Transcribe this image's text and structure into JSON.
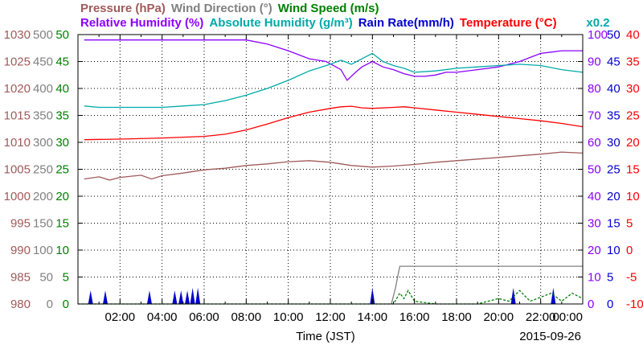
{
  "chart_data": {
    "type": "line",
    "title_rows": [
      [
        {
          "text": "Pressure (hPa)",
          "color": "#A05A5A"
        },
        {
          "text": "Wind Direction (°)",
          "color": "#808080"
        },
        {
          "text": "Wind Speed (m/s)",
          "color": "#008000"
        }
      ],
      [
        {
          "text": "Relative Humidity (%)",
          "color": "#8B00FF"
        },
        {
          "text": "Absolute Humidity (g/m³)",
          "color": "#00AAAA"
        },
        {
          "text": "Rain Rate(mm/h)",
          "color": "#0000CC"
        },
        {
          "text": "Temperature (°C)",
          "color": "#FF0000"
        }
      ]
    ],
    "scale_note": "x0.2",
    "xlabel": "Time (JST)",
    "date": "2015-09-26",
    "x_range": [
      0,
      24
    ],
    "x_tick_hours": [
      2,
      4,
      6,
      8,
      10,
      12,
      14,
      16,
      18,
      20,
      22,
      24
    ],
    "x_tick_labels": [
      "02:00",
      "04:00",
      "06:00",
      "08:00",
      "10:00",
      "12:00",
      "14:00",
      "16:00",
      "18:00",
      "20:00",
      "22:00",
      "00:00"
    ],
    "grid": true,
    "left_axes": [
      {
        "name": "pressure",
        "color": "#A05A5A",
        "ticks": [
          "980",
          "985",
          "990",
          "995",
          "1000",
          "1005",
          "1010",
          "1015",
          "1020",
          "1025",
          "1030"
        ]
      },
      {
        "name": "wind_direction",
        "color": "#808080",
        "ticks": [
          "0",
          "50",
          "100",
          "150",
          "200",
          "250",
          "300",
          "350",
          "400",
          "450",
          "500"
        ]
      },
      {
        "name": "wind_speed",
        "color": "#008000",
        "ticks": [
          "0",
          "5",
          "10",
          "15",
          "20",
          "25",
          "30",
          "35",
          "40",
          "45",
          "50"
        ]
      }
    ],
    "right_axes": [
      {
        "name": "humidity",
        "color": "#8B00FF",
        "ticks": [
          "0",
          "10",
          "20",
          "30",
          "40",
          "50",
          "60",
          "70",
          "80",
          "90",
          "100"
        ]
      },
      {
        "name": "rain_rate",
        "color": "#0000CC",
        "ticks": [
          "0",
          "5",
          "10",
          "15",
          "20",
          "25",
          "30",
          "35",
          "40",
          "45",
          "50"
        ]
      },
      {
        "name": "temperature",
        "color": "#FF0000",
        "ticks": [
          "-10",
          "-5",
          "0",
          "5",
          "10",
          "15",
          "20",
          "25",
          "30",
          "35",
          "40"
        ]
      }
    ],
    "series": [
      {
        "name": "Relative Humidity",
        "color": "#8B00FF",
        "y_range": [
          0,
          100
        ],
        "points": [
          [
            0.3,
            98
          ],
          [
            4,
            98
          ],
          [
            8,
            98
          ],
          [
            9,
            96.5
          ],
          [
            10,
            94
          ],
          [
            11,
            91
          ],
          [
            11.8,
            90
          ],
          [
            12.5,
            87
          ],
          [
            12.8,
            83
          ],
          [
            13.2,
            86
          ],
          [
            13.5,
            88
          ],
          [
            14,
            90
          ],
          [
            14.5,
            88
          ],
          [
            15,
            87
          ],
          [
            15.5,
            85.5
          ],
          [
            16,
            84.5
          ],
          [
            16.5,
            84.5
          ],
          [
            17,
            85
          ],
          [
            17.5,
            86
          ],
          [
            18,
            86
          ],
          [
            19,
            87
          ],
          [
            20,
            88
          ],
          [
            21,
            90
          ],
          [
            22,
            93
          ],
          [
            22.5,
            93.5
          ],
          [
            23,
            94
          ],
          [
            24,
            94
          ]
        ]
      },
      {
        "name": "Absolute Humidity",
        "color": "#00AAAA",
        "y_range": [
          0,
          100
        ],
        "points": [
          [
            0.3,
            73.5
          ],
          [
            1,
            73
          ],
          [
            2,
            73
          ],
          [
            3,
            73
          ],
          [
            4,
            73
          ],
          [
            5,
            73.5
          ],
          [
            6,
            74
          ],
          [
            7,
            75.5
          ],
          [
            8,
            77.5
          ],
          [
            9,
            80
          ],
          [
            10,
            83
          ],
          [
            11,
            86.5
          ],
          [
            12,
            89
          ],
          [
            12.5,
            90.5
          ],
          [
            13,
            89
          ],
          [
            13.5,
            91
          ],
          [
            14,
            93
          ],
          [
            14.5,
            90
          ],
          [
            15,
            88.5
          ],
          [
            15.5,
            87.5
          ],
          [
            16,
            86
          ],
          [
            17,
            86.5
          ],
          [
            18,
            87.5
          ],
          [
            19,
            88
          ],
          [
            20,
            88.5
          ],
          [
            21,
            89
          ],
          [
            22,
            88.5
          ],
          [
            23,
            87
          ],
          [
            24,
            86
          ]
        ]
      },
      {
        "name": "Temperature",
        "color": "#FF0000",
        "y_range": [
          -10,
          40
        ],
        "points": [
          [
            0.3,
            20.5
          ],
          [
            2,
            20.6
          ],
          [
            4,
            20.8
          ],
          [
            6,
            21.1
          ],
          [
            7,
            21.5
          ],
          [
            8,
            22.3
          ],
          [
            9,
            23.4
          ],
          [
            10,
            24.6
          ],
          [
            11,
            25.6
          ],
          [
            12,
            26.3
          ],
          [
            12.5,
            26.6
          ],
          [
            13,
            26.7
          ],
          [
            13.5,
            26.4
          ],
          [
            14,
            26.3
          ],
          [
            15,
            26.5
          ],
          [
            15.5,
            26.6
          ],
          [
            16,
            26.4
          ],
          [
            17,
            26.0
          ],
          [
            18,
            25.6
          ],
          [
            19,
            25.2
          ],
          [
            20,
            24.8
          ],
          [
            21,
            24.4
          ],
          [
            22,
            24.0
          ],
          [
            23,
            23.5
          ],
          [
            24,
            22.9
          ]
        ]
      },
      {
        "name": "Pressure",
        "color": "#A05A5A",
        "y_range": [
          980,
          1030
        ],
        "points": [
          [
            0.3,
            1003.2
          ],
          [
            1,
            1003.6
          ],
          [
            1.5,
            1003.0
          ],
          [
            2,
            1003.5
          ],
          [
            3,
            1003.9
          ],
          [
            3.5,
            1003.2
          ],
          [
            4,
            1003.8
          ],
          [
            5,
            1004.3
          ],
          [
            6,
            1004.9
          ],
          [
            7,
            1005.2
          ],
          [
            8,
            1005.7
          ],
          [
            9,
            1006.0
          ],
          [
            10,
            1006.4
          ],
          [
            11,
            1006.6
          ],
          [
            12,
            1006.3
          ],
          [
            13,
            1005.7
          ],
          [
            14,
            1005.4
          ],
          [
            15,
            1005.6
          ],
          [
            16,
            1005.9
          ],
          [
            17,
            1006.3
          ],
          [
            18,
            1006.6
          ],
          [
            19,
            1006.9
          ],
          [
            20,
            1007.2
          ],
          [
            21,
            1007.5
          ],
          [
            22,
            1007.8
          ],
          [
            23,
            1008.2
          ],
          [
            24,
            1008.0
          ]
        ]
      },
      {
        "name": "Wind Direction",
        "color": "#808080",
        "y_range": [
          0,
          500
        ],
        "points": [
          [
            14.9,
            0
          ],
          [
            15.1,
            30
          ],
          [
            15.2,
            50
          ],
          [
            15.3,
            70
          ],
          [
            24,
            70
          ]
        ]
      },
      {
        "name": "Wind Speed",
        "color": "#008000",
        "y_range": [
          0,
          50
        ],
        "points": [
          [
            0,
            0
          ],
          [
            15,
            0
          ],
          [
            15.3,
            2
          ],
          [
            15.5,
            1
          ],
          [
            15.7,
            2.5
          ],
          [
            16,
            0.5
          ],
          [
            17,
            0
          ],
          [
            19,
            0
          ],
          [
            20,
            1
          ],
          [
            20.5,
            0.5
          ],
          [
            21,
            2.5
          ],
          [
            21.5,
            0.5
          ],
          [
            22.5,
            2
          ],
          [
            23,
            0.5
          ],
          [
            23.5,
            2
          ],
          [
            24,
            1
          ]
        ]
      }
    ],
    "rain_rate": {
      "name": "Rain Rate",
      "color": "#0000CC",
      "y_range": [
        0,
        50
      ],
      "peaks": [
        [
          0.6,
          2.5
        ],
        [
          1.3,
          2.5
        ],
        [
          3.4,
          2.5
        ],
        [
          4.6,
          2.5
        ],
        [
          4.9,
          2.5
        ],
        [
          5.2,
          2.5
        ],
        [
          5.45,
          3
        ],
        [
          5.7,
          3
        ],
        [
          14.0,
          3
        ],
        [
          20.7,
          3
        ],
        [
          22.6,
          3
        ]
      ]
    }
  }
}
